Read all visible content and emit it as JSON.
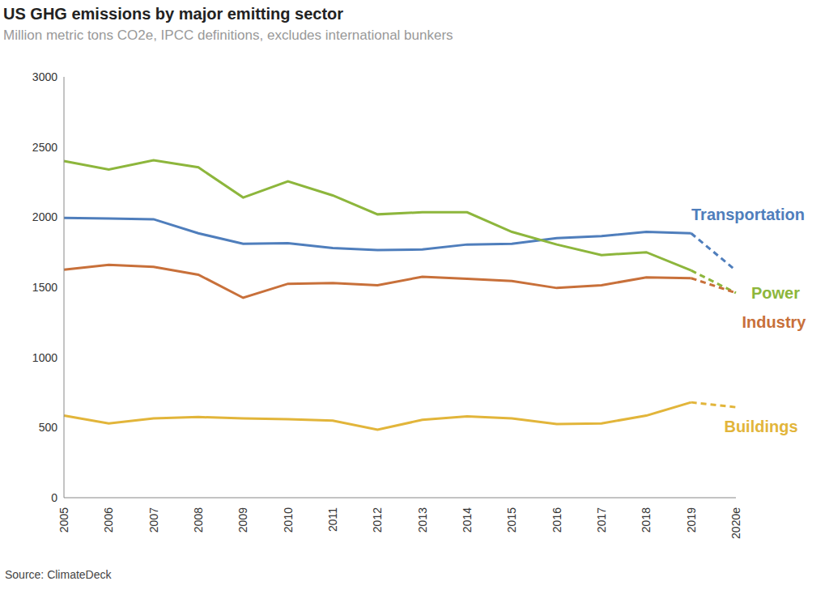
{
  "chart_data": {
    "type": "line",
    "title": "US GHG emissions by major emitting sector",
    "subtitle": "Million metric tons CO2e, IPCC definitions, excludes international bunkers",
    "source": "Source: ClimateDeck",
    "categories": [
      "2005",
      "2006",
      "2007",
      "2008",
      "2009",
      "2010",
      "2011",
      "2012",
      "2013",
      "2014",
      "2015",
      "2016",
      "2017",
      "2018",
      "2019",
      "2020e"
    ],
    "series": [
      {
        "name": "Transportation",
        "color": "#4f7ebc",
        "values": [
          1995,
          1990,
          1985,
          1885,
          1810,
          1815,
          1780,
          1765,
          1770,
          1805,
          1810,
          1850,
          1865,
          1895,
          1885,
          1620
        ]
      },
      {
        "name": "Power",
        "color": "#8db63c",
        "values": [
          2400,
          2340,
          2405,
          2355,
          2140,
          2255,
          2155,
          2020,
          2035,
          2035,
          1895,
          1805,
          1730,
          1750,
          1620,
          1460
        ]
      },
      {
        "name": "Industry",
        "color": "#c8703a",
        "values": [
          1625,
          1660,
          1645,
          1590,
          1425,
          1525,
          1530,
          1515,
          1575,
          1560,
          1545,
          1495,
          1515,
          1570,
          1565,
          1460
        ]
      },
      {
        "name": "Buildings",
        "color": "#e2b53a",
        "values": [
          585,
          530,
          565,
          575,
          565,
          560,
          550,
          485,
          555,
          580,
          565,
          525,
          530,
          585,
          680,
          645
        ]
      }
    ],
    "ylim": [
      0,
      3000
    ],
    "yticks": [
      0,
      500,
      1000,
      1500,
      2000,
      2500,
      3000
    ],
    "grid": false
  }
}
